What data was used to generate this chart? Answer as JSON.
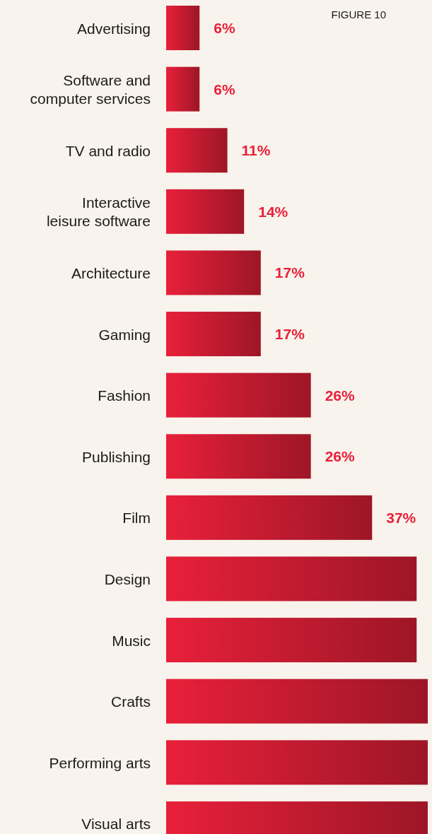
{
  "chart_data": {
    "type": "bar",
    "orientation": "horizontal",
    "title": "FIGURE 10",
    "categories": [
      "Advertising",
      "Software and\ncomputer services",
      "TV and radio",
      "Interactive\nleisure software",
      "Architecture",
      "Gaming",
      "Fashion",
      "Publishing",
      "Film",
      "Design",
      "Music",
      "Crafts",
      "Performing arts",
      "Visual arts"
    ],
    "values": [
      6,
      6,
      11,
      14,
      17,
      17,
      26,
      26,
      37,
      45,
      45,
      47,
      47,
      47
    ],
    "value_labels": [
      "6%",
      "6%",
      "11%",
      "14%",
      "17%",
      "17%",
      "26%",
      "26%",
      "37%",
      null,
      null,
      null,
      null,
      null
    ],
    "color": "#e8203a"
  }
}
